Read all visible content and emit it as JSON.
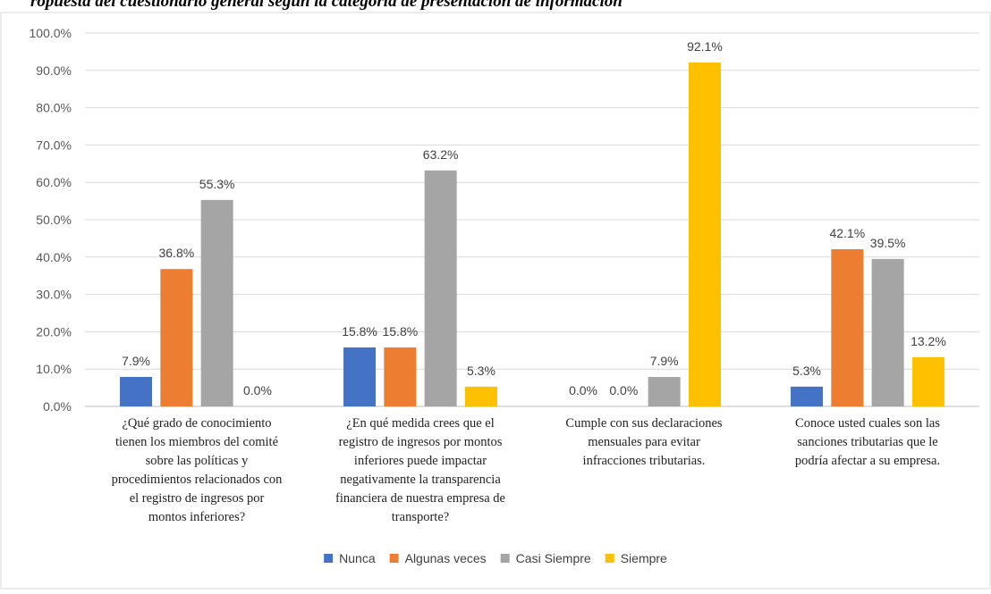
{
  "page": {
    "title": "ropuesta del cuestionario general según la categoría de presentación de información"
  },
  "chart_data": {
    "type": "bar",
    "title": "",
    "xlabel": "",
    "ylabel": "",
    "ylim": [
      0,
      100
    ],
    "y_ticks": [
      "0.0%",
      "10.0%",
      "20.0%",
      "30.0%",
      "40.0%",
      "50.0%",
      "60.0%",
      "70.0%",
      "80.0%",
      "90.0%",
      "100.0%"
    ],
    "grid": true,
    "legend_position": "bottom",
    "categories": [
      [
        "¿Qué grado de conocimiento",
        "tienen los miembros del comité",
        "sobre las políticas y",
        "procedimientos relacionados con",
        "el registro de ingresos por",
        "montos inferiores?"
      ],
      [
        "¿En qué medida crees que el",
        "registro de ingresos por montos",
        "inferiores puede impactar",
        "negativamente la transparencia",
        "financiera de nuestra empresa de",
        "transporte?"
      ],
      [
        "Cumple con sus declaraciones",
        "mensuales para evitar",
        "infracciones tributarias."
      ],
      [
        "Conoce usted cuales son las",
        "sanciones tributarias que le",
        "podría afectar a su empresa."
      ]
    ],
    "series": [
      {
        "name": "Nunca",
        "color": "#4472C4",
        "values": [
          7.9,
          15.8,
          0.0,
          5.3
        ],
        "labels": [
          "7.9%",
          "15.8%",
          "0.0%",
          "5.3%"
        ]
      },
      {
        "name": "Algunas veces",
        "color": "#ED7D31",
        "values": [
          36.8,
          15.8,
          0.0,
          42.1
        ],
        "labels": [
          "36.8%",
          "15.8%",
          "0.0%",
          "42.1%"
        ]
      },
      {
        "name": "Casi Siempre",
        "color": "#A5A5A5",
        "values": [
          55.3,
          63.2,
          7.9,
          39.5
        ],
        "labels": [
          "55.3%",
          "63.2%",
          "7.9%",
          "39.5%"
        ]
      },
      {
        "name": "Siempre",
        "color": "#FFC000",
        "values": [
          0.0,
          5.3,
          92.1,
          13.2
        ],
        "labels": [
          "0.0%",
          "5.3%",
          "92.1%",
          "13.2%"
        ]
      }
    ]
  }
}
